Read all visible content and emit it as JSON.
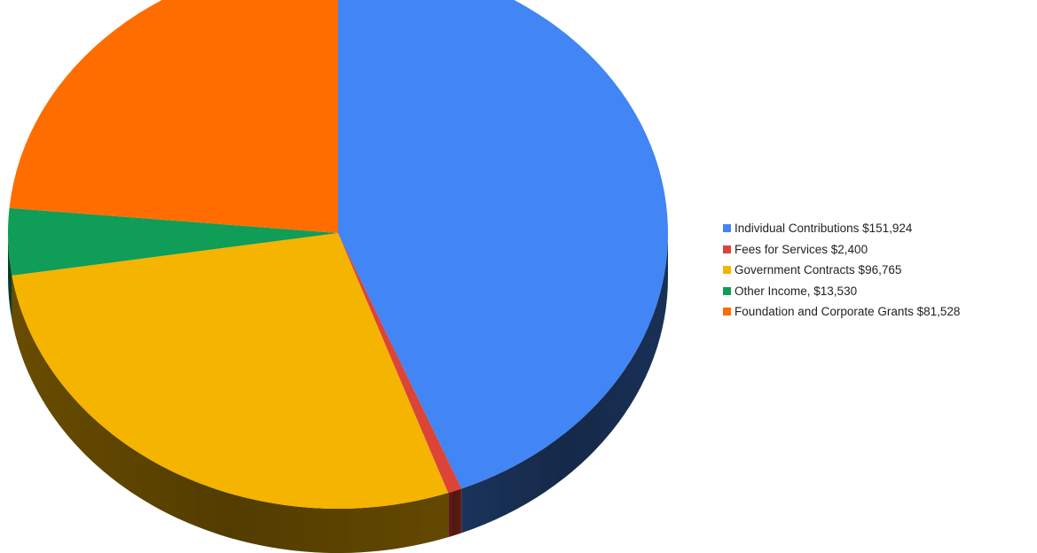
{
  "chart_data": {
    "type": "pie",
    "title": "",
    "legend_position": "right",
    "style": "3d",
    "slices": [
      {
        "label": "Individual Contributions $151,924",
        "value": 151924,
        "color": "#4285F4",
        "side_color": "#1C3660"
      },
      {
        "label": "Fees for Services $2,400",
        "value": 2400,
        "color": "#DB4437",
        "side_color": "#6A1F18"
      },
      {
        "label": "Government Contracts $96,765",
        "value": 96765,
        "color": "#F4B400",
        "side_color": "#6E5000"
      },
      {
        "label": "Other Income, $13,530",
        "value": 13530,
        "color": "#0F9D58",
        "side_color": "#0A4A28"
      },
      {
        "label": "Foundation and Corporate Grants $81,528",
        "value": 81528,
        "color": "#FF6D01",
        "side_color": "#7A3300"
      }
    ]
  }
}
